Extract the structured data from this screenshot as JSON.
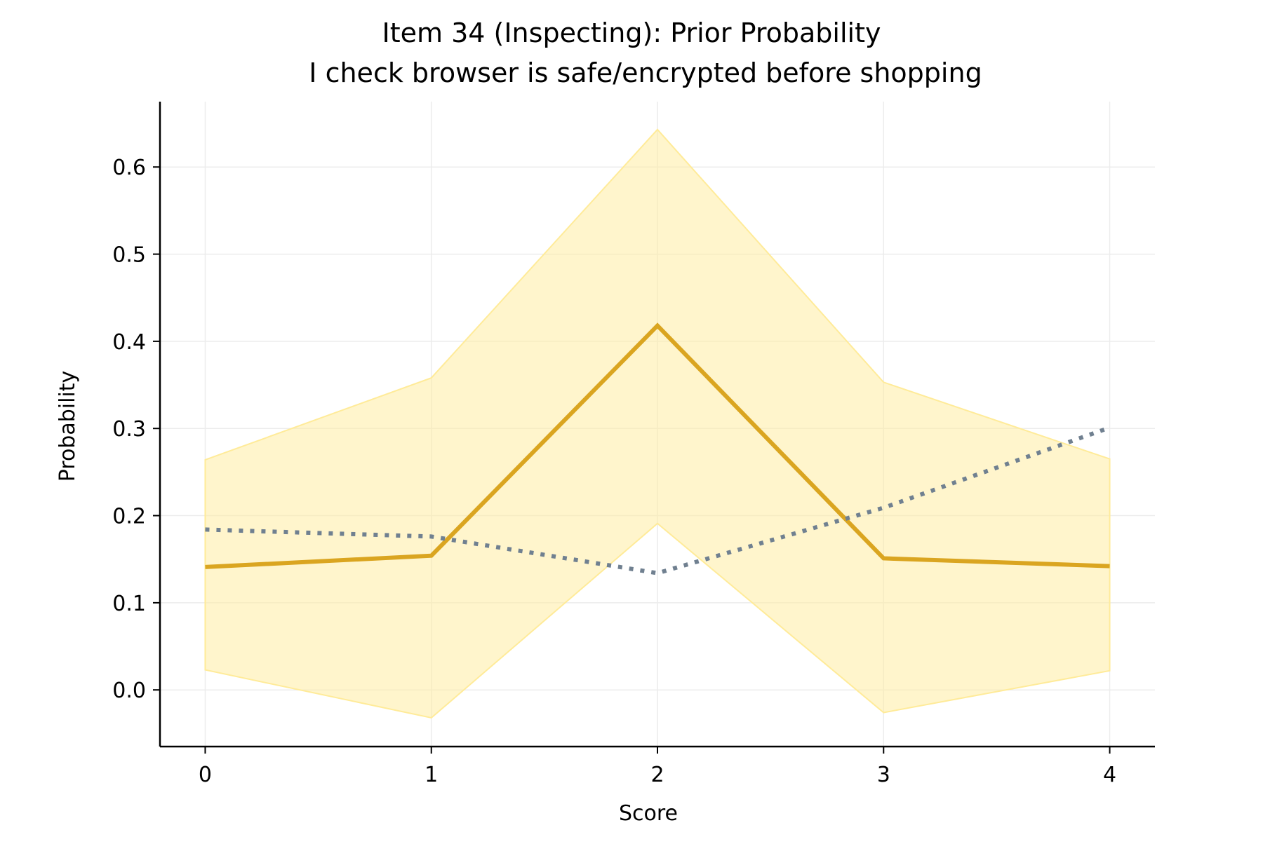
{
  "chart_data": {
    "type": "line",
    "title": "Item 34 (Inspecting): Prior Probability",
    "subtitle": "I check browser is safe/encrypted before shopping",
    "xlabel": "Score",
    "ylabel": "Probability",
    "x": [
      0,
      1,
      2,
      3,
      4
    ],
    "xticks": [
      "0",
      "1",
      "2",
      "3",
      "4"
    ],
    "yticks": [
      "0.0",
      "0.1",
      "0.2",
      "0.3",
      "0.4",
      "0.5",
      "0.6"
    ],
    "xlim": [
      -0.2,
      4.2
    ],
    "ylim": [
      -0.065,
      0.675
    ],
    "grid": true,
    "series": [
      {
        "style": "solid",
        "color": "#DAA520",
        "values": [
          0.141,
          0.154,
          0.418,
          0.151,
          0.142
        ]
      },
      {
        "style": "dotted",
        "color": "#708090",
        "values": [
          0.184,
          0.176,
          0.134,
          0.209,
          0.301
        ]
      }
    ],
    "band": {
      "color": "#FFEB99",
      "lower": [
        0.023,
        -0.032,
        0.191,
        -0.026,
        0.022
      ],
      "upper": [
        0.264,
        0.358,
        0.643,
        0.353,
        0.265
      ]
    }
  }
}
